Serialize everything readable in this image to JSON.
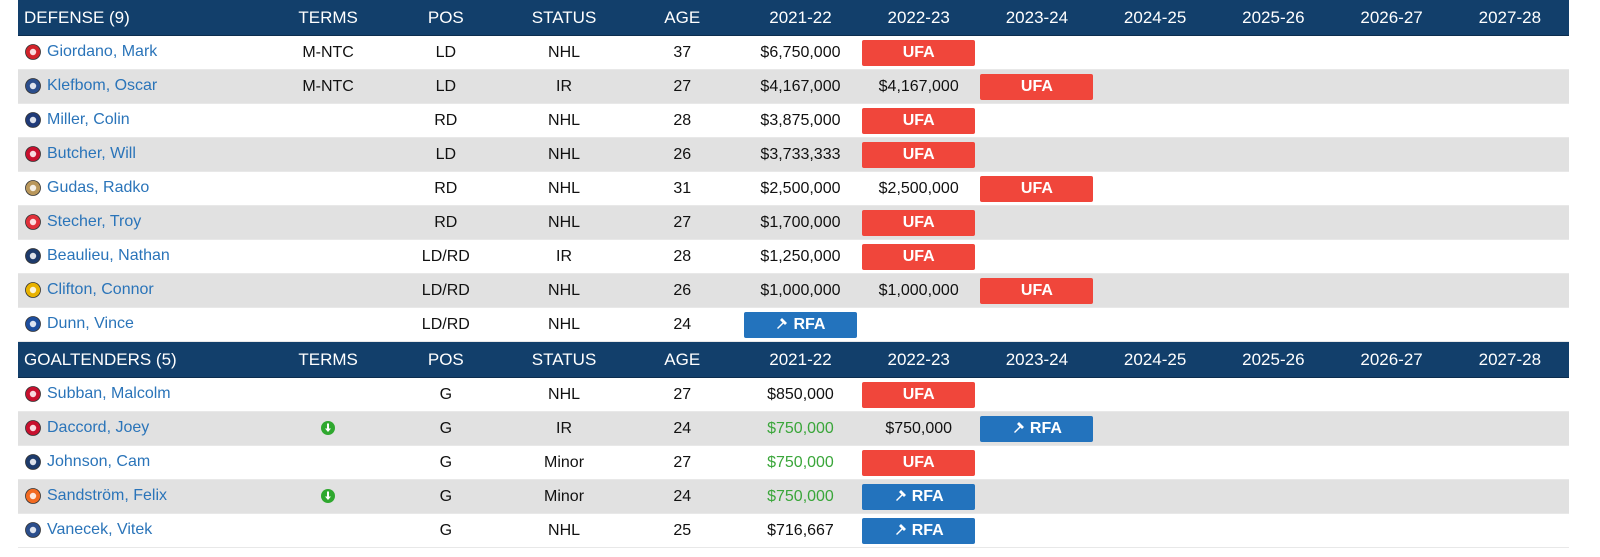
{
  "colors": {
    "header_bg": "#123f6b",
    "ufa": "#f0463b",
    "rfa": "#2373bd",
    "link": "#2a74b9",
    "green": "#3aa63a",
    "alt_row": "#e1e1e1"
  },
  "columns": [
    "TERMS",
    "POS",
    "STATUS",
    "AGE",
    "2021-22",
    "2022-23",
    "2023-24",
    "2024-25",
    "2025-26",
    "2026-27",
    "2027-28"
  ],
  "defense": {
    "title": "DEFENSE (9)",
    "rows": [
      {
        "logo": "calgary-flames-logo",
        "logo_color": "#d2232a",
        "name": "Giordano, Mark",
        "terms": "M-NTC",
        "pos": "LD",
        "status": "NHL",
        "age": "37",
        "y1": "$6,750,000",
        "y1_green": false,
        "y2": "UFA",
        "y2_type": "ufa",
        "y3": "",
        "y3_type": "text"
      },
      {
        "logo": "edmonton-oilers-logo",
        "logo_color": "#2b4e8c",
        "name": "Klefbom, Oscar",
        "terms": "M-NTC",
        "pos": "LD",
        "status": "IR",
        "age": "27",
        "y1": "$4,167,000",
        "y1_green": false,
        "y2": "$4,167,000",
        "y2_type": "text",
        "y3": "UFA",
        "y3_type": "ufa"
      },
      {
        "logo": "buffalo-sabres-logo",
        "logo_color": "#1f3a78",
        "name": "Miller, Colin",
        "terms": "",
        "pos": "RD",
        "status": "NHL",
        "age": "28",
        "y1": "$3,875,000",
        "y1_green": false,
        "y2": "UFA",
        "y2_type": "ufa",
        "y3": "",
        "y3_type": "text"
      },
      {
        "logo": "new-jersey-devils-logo",
        "logo_color": "#c8102e",
        "name": "Butcher, Will",
        "terms": "",
        "pos": "LD",
        "status": "NHL",
        "age": "26",
        "y1": "$3,733,333",
        "y1_green": false,
        "y2": "UFA",
        "y2_type": "ufa",
        "y3": "",
        "y3_type": "text"
      },
      {
        "logo": "florida-panthers-logo",
        "logo_color": "#b9975b",
        "name": "Gudas, Radko",
        "terms": "",
        "pos": "RD",
        "status": "NHL",
        "age": "31",
        "y1": "$2,500,000",
        "y1_green": false,
        "y2": "$2,500,000",
        "y2_type": "text",
        "y3": "UFA",
        "y3_type": "ufa"
      },
      {
        "logo": "detroit-red-wings-logo",
        "logo_color": "#e0303a",
        "name": "Stecher, Troy",
        "terms": "",
        "pos": "RD",
        "status": "NHL",
        "age": "27",
        "y1": "$1,700,000",
        "y1_green": false,
        "y2": "UFA",
        "y2_type": "ufa",
        "y3": "",
        "y3_type": "text"
      },
      {
        "logo": "winnipeg-jets-logo",
        "logo_color": "#1d3a6b",
        "name": "Beaulieu, Nathan",
        "terms": "",
        "pos": "LD/RD",
        "status": "IR",
        "age": "28",
        "y1": "$1,250,000",
        "y1_green": false,
        "y2": "UFA",
        "y2_type": "ufa",
        "y3": "",
        "y3_type": "text"
      },
      {
        "logo": "boston-bruins-logo",
        "logo_color": "#e8b200",
        "name": "Clifton, Connor",
        "terms": "",
        "pos": "LD/RD",
        "status": "NHL",
        "age": "26",
        "y1": "$1,000,000",
        "y1_green": false,
        "y2": "$1,000,000",
        "y2_type": "text",
        "y3": "UFA",
        "y3_type": "ufa"
      },
      {
        "logo": "st-louis-blues-logo",
        "logo_color": "#1d4e9e",
        "name": "Dunn, Vince",
        "terms": "",
        "pos": "LD/RD",
        "status": "NHL",
        "age": "24",
        "y1": "RFA",
        "y1_type": "rfa",
        "y1_green": false,
        "y2": "",
        "y2_type": "text",
        "y3": "",
        "y3_type": "text"
      }
    ]
  },
  "goaltenders": {
    "title": "GOALTENDERS (5)",
    "rows": [
      {
        "logo": "chicago-blackhawks-logo",
        "logo_color": "#c8102e",
        "name": "Subban, Malcolm",
        "terms": "",
        "pos": "G",
        "status": "NHL",
        "age": "27",
        "y1": "$850,000",
        "y1_green": false,
        "y2": "UFA",
        "y2_type": "ufa",
        "y3": "",
        "y3_type": "text"
      },
      {
        "logo": "ottawa-senators-logo",
        "logo_color": "#c8102e",
        "name": "Daccord, Joey",
        "terms_icon": "info-down-icon",
        "pos": "G",
        "status": "IR",
        "age": "24",
        "y1": "$750,000",
        "y1_green": true,
        "y2": "$750,000",
        "y2_type": "text",
        "y3": "RFA",
        "y3_type": "rfa"
      },
      {
        "logo": "columbus-blue-jackets-logo",
        "logo_color": "#1d3a6b",
        "name": "Johnson, Cam",
        "terms": "",
        "pos": "G",
        "status": "Minor",
        "age": "27",
        "y1": "$750,000",
        "y1_green": true,
        "y2": "UFA",
        "y2_type": "ufa",
        "y3": "",
        "y3_type": "text"
      },
      {
        "logo": "philadelphia-flyers-logo",
        "logo_color": "#f26a21",
        "name": "Sandström, Felix",
        "terms_icon": "info-down-icon",
        "pos": "G",
        "status": "Minor",
        "age": "24",
        "y1": "$750,000",
        "y1_green": true,
        "y2": "RFA",
        "y2_type": "rfa",
        "y3": "",
        "y3_type": "text"
      },
      {
        "logo": "washington-capitals-logo",
        "logo_color": "#2b4e8c",
        "name": "Vanecek, Vitek",
        "terms": "",
        "pos": "G",
        "status": "NHL",
        "age": "25",
        "y1": "$716,667",
        "y1_green": false,
        "y2": "RFA",
        "y2_type": "rfa",
        "y3": "",
        "y3_type": "text"
      }
    ]
  }
}
